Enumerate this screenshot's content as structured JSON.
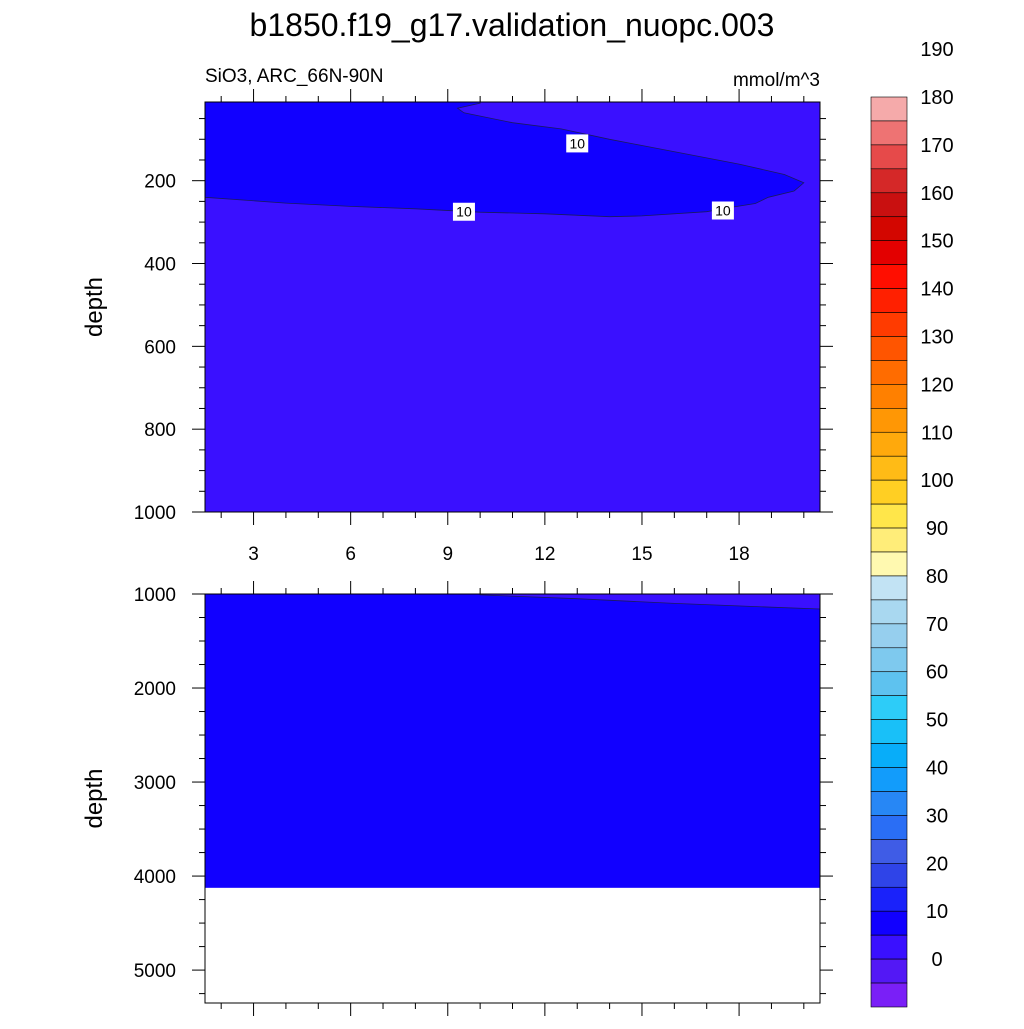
{
  "chart_data": [
    {
      "type": "contour",
      "panel": "upper",
      "title": "b1850.f19_g17.validation_nuopc.003",
      "subtitle_left": "SiO3, ARC_66N-90N",
      "subtitle_right": "mmol/m^3",
      "ylabel": "depth",
      "xlabel": "",
      "xlim": [
        1.5,
        20.5
      ],
      "ylim": [
        1000,
        10
      ],
      "y_reversed": true,
      "x_ticks": [
        "3",
        "6",
        "9",
        "12",
        "15",
        "18"
      ],
      "y_ticks": [
        "200",
        "400",
        "600",
        "800",
        "1000"
      ],
      "x_tick_values": [
        3,
        6,
        9,
        12,
        15,
        18
      ],
      "y_tick_values": [
        200,
        400,
        600,
        800,
        1000
      ],
      "background_level": "0-10",
      "regions": [
        {
          "level": "10-20",
          "color": "#1100ff",
          "boundary": [
            [
              1.5,
              10
            ],
            [
              2.5,
              10
            ],
            [
              9,
              10
            ],
            [
              10,
              10
            ],
            [
              10,
              13
            ],
            [
              9.3,
              25
            ],
            [
              9.5,
              36
            ],
            [
              11,
              60
            ],
            [
              12.5,
              75
            ],
            [
              14,
              100
            ],
            [
              15,
              115
            ],
            [
              18,
              160
            ],
            [
              19.4,
              185
            ],
            [
              20,
              205
            ],
            [
              19.7,
              225
            ],
            [
              18.9,
              240
            ],
            [
              18.5,
              255
            ],
            [
              17.7,
              265
            ],
            [
              17,
              275
            ],
            [
              15,
              285
            ],
            [
              14,
              287
            ],
            [
              12,
              280
            ],
            [
              10,
              276
            ],
            [
              8,
              268
            ],
            [
              6,
              262
            ],
            [
              4,
              254
            ],
            [
              1.5,
              240
            ]
          ]
        }
      ],
      "contour_labels": [
        {
          "text": "10",
          "x": 13.0,
          "y": 110
        },
        {
          "text": "10",
          "x": 9.5,
          "y": 275
        },
        {
          "text": "10",
          "x": 17.5,
          "y": 272
        }
      ],
      "grid": false
    },
    {
      "type": "contour",
      "panel": "lower",
      "ylabel": "depth",
      "xlabel": "",
      "xlim": [
        1.5,
        20.5
      ],
      "ylim": [
        5350,
        1000
      ],
      "y_reversed": true,
      "x_tick_values": [
        3,
        6,
        9,
        12,
        15,
        18
      ],
      "y_ticks": [
        "1000",
        "2000",
        "3000",
        "4000",
        "5000"
      ],
      "y_tick_values": [
        1000,
        2000,
        3000,
        4000,
        5000
      ],
      "background_level": "10-20",
      "data_bottom_depth": 4125,
      "regions": [
        {
          "level": "0-10",
          "color": "#3a10ff",
          "boundary": [
            [
              10,
              1000
            ],
            [
              20.5,
              1000
            ],
            [
              20.5,
              1160
            ],
            [
              19,
              1140
            ],
            [
              16,
              1100
            ],
            [
              13,
              1050
            ],
            [
              10,
              1010
            ]
          ]
        }
      ],
      "grid": false
    }
  ],
  "colorbar": {
    "labels": [
      "0",
      "10",
      "20",
      "30",
      "40",
      "50",
      "60",
      "70",
      "80",
      "90",
      "100",
      "110",
      "120",
      "130",
      "140",
      "150",
      "160",
      "170",
      "180",
      "190"
    ],
    "colors": [
      "#7a1ff7",
      "#5318f5",
      "#3a10ff",
      "#1100ff",
      "#1a22fa",
      "#2f44e8",
      "#3f5ce6",
      "#2a6ef5",
      "#2787f5",
      "#129cfb",
      "#08adf9",
      "#19c0f8",
      "#2dccf8",
      "#5ec2ef",
      "#7ec9ee",
      "#96cfee",
      "#a9d8f0",
      "#c2e3f4",
      "#fff9b0",
      "#ffed79",
      "#ffe64a",
      "#ffcf23",
      "#ffbb16",
      "#ffa90c",
      "#ff9705",
      "#ff8000",
      "#ff6c00",
      "#ff5500",
      "#ff3b00",
      "#ff2000",
      "#ff0e00",
      "#e30000",
      "#d30600",
      "#c91010",
      "#d52828",
      "#e64a4a",
      "#ee7373",
      "#f5aaaa"
    ]
  }
}
